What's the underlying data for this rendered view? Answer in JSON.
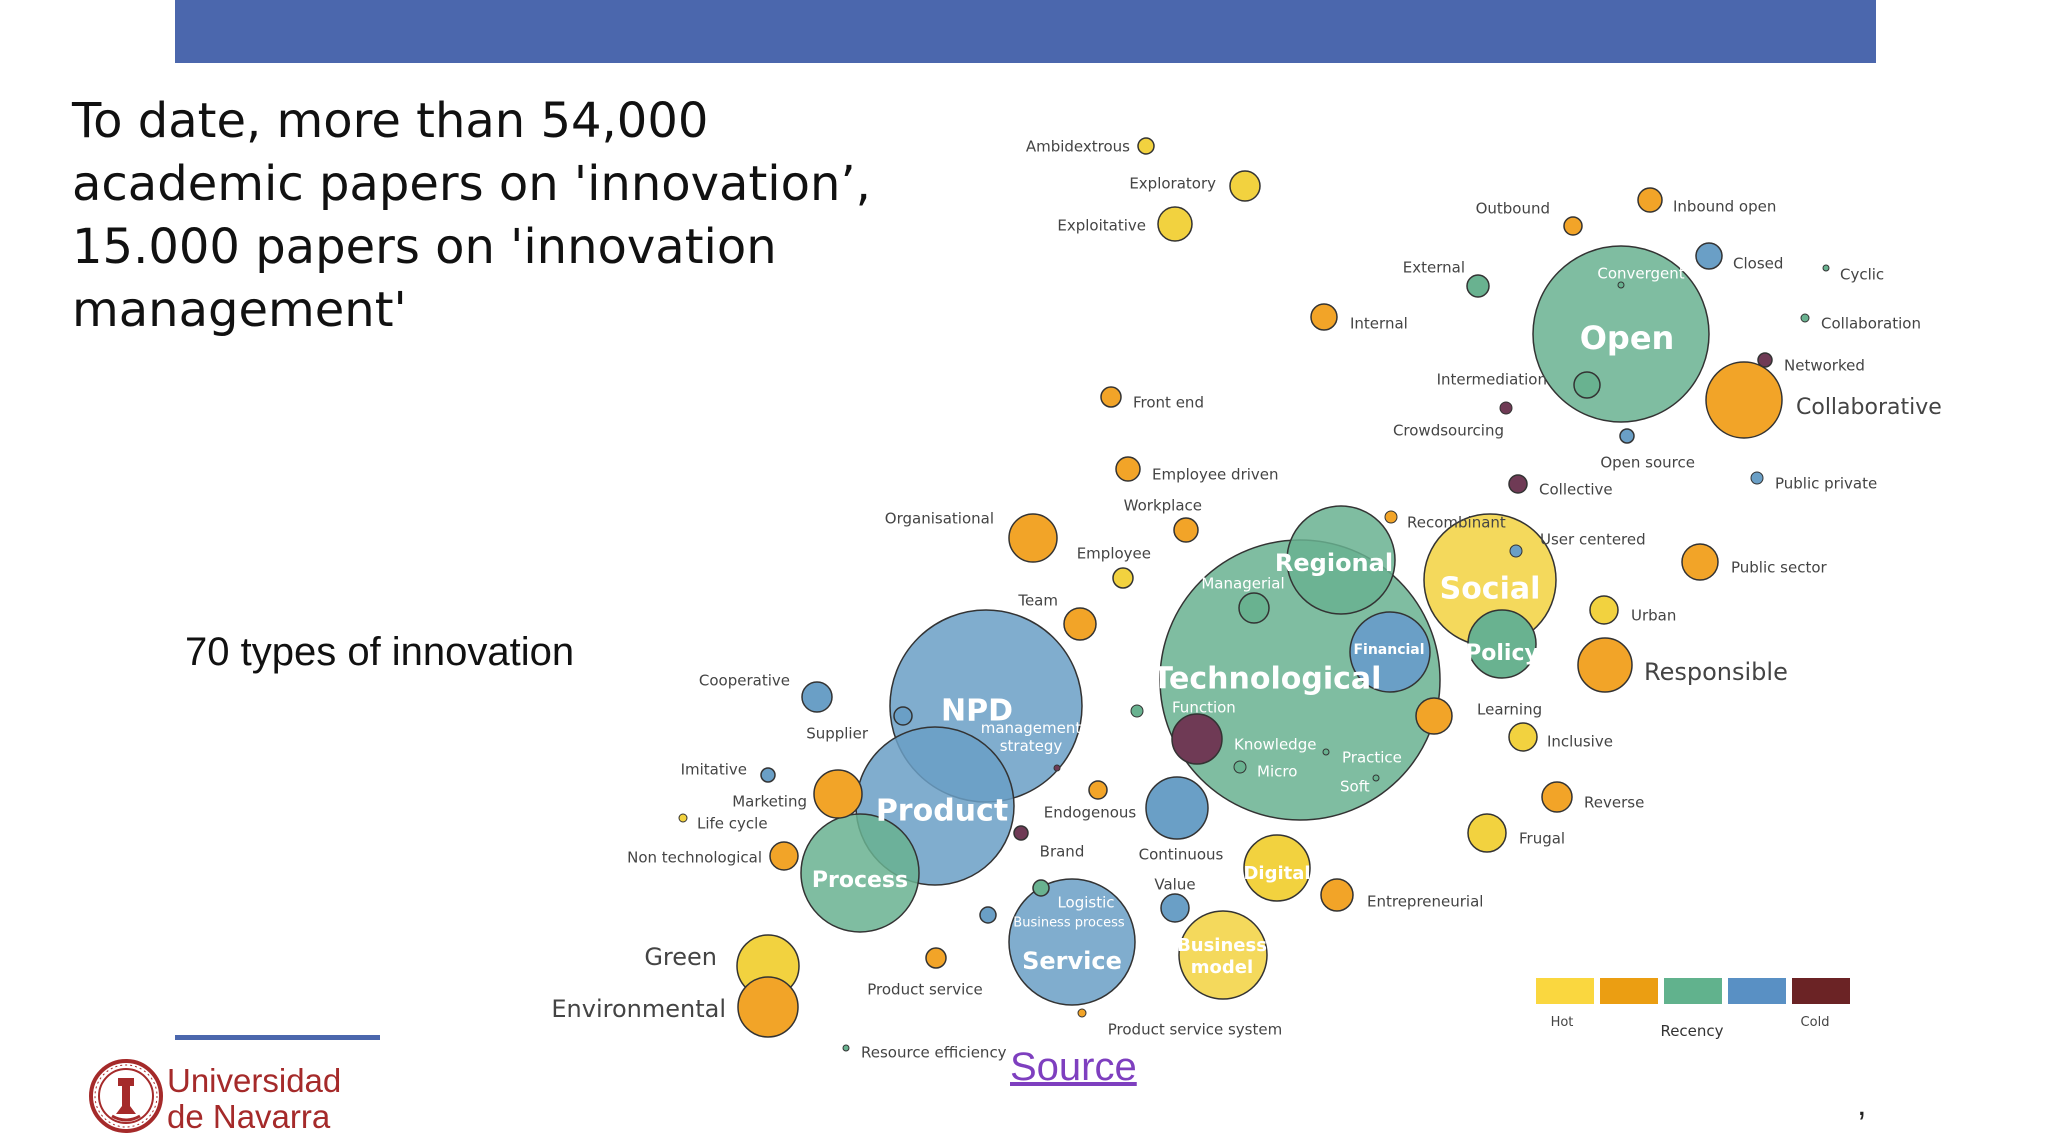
{
  "headline": "To date, more than 54,000\nacademic papers on 'innovation’,\n15.000 papers on 'innovation\nmanagement'",
  "subhead": "70 types of innovation",
  "source_link": "Source",
  "logo": {
    "line1": "Universidad",
    "line2": "de Navarra"
  },
  "corner_mark": "‚",
  "legend": {
    "title": "Recency",
    "hot_label": "Hot",
    "cold_label": "Cold",
    "colors": [
      "#fad73f",
      "#eb9e12",
      "#61b28d",
      "#5990c4",
      "#6b2325"
    ]
  },
  "colors": {
    "yellow": "#f2d23f",
    "orange": "#f2a428",
    "green": "#69b290",
    "blue": "#6a9fc6",
    "plum": "#6f3a55",
    "outline": "#333333",
    "top_bar": "#4b67ad"
  },
  "bubbles": [
    {
      "name": "Ambidextrous",
      "color": "yellow",
      "size": "tiny"
    },
    {
      "name": "Exploratory",
      "color": "yellow",
      "size": "small"
    },
    {
      "name": "Exploitative",
      "color": "yellow",
      "size": "small"
    },
    {
      "name": "Outbound",
      "color": "orange",
      "size": "tiny"
    },
    {
      "name": "Inbound open",
      "color": "orange",
      "size": "tiny"
    },
    {
      "name": "Closed",
      "color": "blue",
      "size": "tiny"
    },
    {
      "name": "Cyclic",
      "color": "green",
      "size": "dot"
    },
    {
      "name": "External",
      "color": "green",
      "size": "tiny"
    },
    {
      "name": "Internal",
      "color": "orange",
      "size": "tiny"
    },
    {
      "name": "Collaboration",
      "color": "green",
      "size": "dot"
    },
    {
      "name": "Open",
      "color": "green",
      "size": "large"
    },
    {
      "name": "Convergent",
      "color": "green",
      "size": "dot"
    },
    {
      "name": "Networked",
      "color": "plum",
      "size": "dot"
    },
    {
      "name": "Collaborative",
      "color": "orange",
      "size": "medium"
    },
    {
      "name": "Intermediation",
      "color": "green",
      "size": "tiny"
    },
    {
      "name": "Crowdsourcing",
      "color": "plum",
      "size": "dot"
    },
    {
      "name": "Front end",
      "color": "orange",
      "size": "tiny"
    },
    {
      "name": "Open source",
      "color": "blue",
      "size": "dot"
    },
    {
      "name": "Public private",
      "color": "blue",
      "size": "dot"
    },
    {
      "name": "Employee driven",
      "color": "orange",
      "size": "tiny"
    },
    {
      "name": "Collective",
      "color": "plum",
      "size": "tiny"
    },
    {
      "name": "Workplace",
      "color": "orange",
      "size": "tiny"
    },
    {
      "name": "Recombinant",
      "color": "orange",
      "size": "dot"
    },
    {
      "name": "User centered",
      "color": "blue",
      "size": "dot"
    },
    {
      "name": "Organisational",
      "color": "orange",
      "size": "small"
    },
    {
      "name": "Employee",
      "color": "yellow",
      "size": "tiny"
    },
    {
      "name": "Public sector",
      "color": "orange",
      "size": "small"
    },
    {
      "name": "Regional",
      "color": "green",
      "size": "medium"
    },
    {
      "name": "Social",
      "color": "yellow",
      "size": "medium"
    },
    {
      "name": "Managerial",
      "color": "green",
      "size": "tiny"
    },
    {
      "name": "Team",
      "color": "orange",
      "size": "tiny"
    },
    {
      "name": "Urban",
      "color": "yellow",
      "size": "tiny"
    },
    {
      "name": "Policy",
      "color": "green",
      "size": "small"
    },
    {
      "name": "Financial",
      "color": "blue",
      "size": "small"
    },
    {
      "name": "Technological",
      "color": "green",
      "size": "large"
    },
    {
      "name": "Responsible",
      "color": "orange",
      "size": "small"
    },
    {
      "name": "Cooperative",
      "color": "blue",
      "size": "tiny"
    },
    {
      "name": "NPD",
      "color": "blue",
      "size": "large"
    },
    {
      "name": "Function",
      "color": "green",
      "size": "dot"
    },
    {
      "name": "Learning",
      "color": "orange",
      "size": "tiny"
    },
    {
      "name": "Supplier",
      "color": "blue",
      "size": "dot"
    },
    {
      "name": "management strategy",
      "color": "plum",
      "size": "dot"
    },
    {
      "name": "Inclusive",
      "color": "yellow",
      "size": "tiny"
    },
    {
      "name": "Knowledge",
      "color": "plum",
      "size": "small"
    },
    {
      "name": "Practice",
      "color": "green",
      "size": "dot"
    },
    {
      "name": "Micro",
      "color": "green",
      "size": "dot"
    },
    {
      "name": "Soft",
      "color": "green",
      "size": "dot"
    },
    {
      "name": "Imitative",
      "color": "blue",
      "size": "dot"
    },
    {
      "name": "Marketing",
      "color": "orange",
      "size": "small"
    },
    {
      "name": "Product",
      "color": "blue",
      "size": "large"
    },
    {
      "name": "Reverse",
      "color": "orange",
      "size": "tiny"
    },
    {
      "name": "Life cycle",
      "color": "yellow",
      "size": "dot"
    },
    {
      "name": "Endogenous",
      "color": "orange",
      "size": "dot"
    },
    {
      "name": "Continuous",
      "color": "blue",
      "size": "small"
    },
    {
      "name": "Frugal",
      "color": "yellow",
      "size": "tiny"
    },
    {
      "name": "Non technological",
      "color": "orange",
      "size": "tiny"
    },
    {
      "name": "Brand",
      "color": "plum",
      "size": "dot"
    },
    {
      "name": "Process",
      "color": "green",
      "size": "large"
    },
    {
      "name": "Digital",
      "color": "yellow",
      "size": "small"
    },
    {
      "name": "Value",
      "color": "blue",
      "size": "tiny"
    },
    {
      "name": "Entrepreneurial",
      "color": "orange",
      "size": "tiny"
    },
    {
      "name": "Logistic",
      "color": "green",
      "size": "dot"
    },
    {
      "name": "Business process",
      "color": "blue",
      "size": "dot"
    },
    {
      "name": "Service",
      "color": "blue",
      "size": "medium"
    },
    {
      "name": "Business model",
      "color": "yellow",
      "size": "small"
    },
    {
      "name": "Green",
      "color": "yellow",
      "size": "small"
    },
    {
      "name": "Product service",
      "color": "orange",
      "size": "tiny"
    },
    {
      "name": "Environmental",
      "color": "orange",
      "size": "small"
    },
    {
      "name": "Product service system",
      "color": "orange",
      "size": "dot"
    },
    {
      "name": "Resource efficiency",
      "color": "green",
      "size": "dot"
    }
  ]
}
